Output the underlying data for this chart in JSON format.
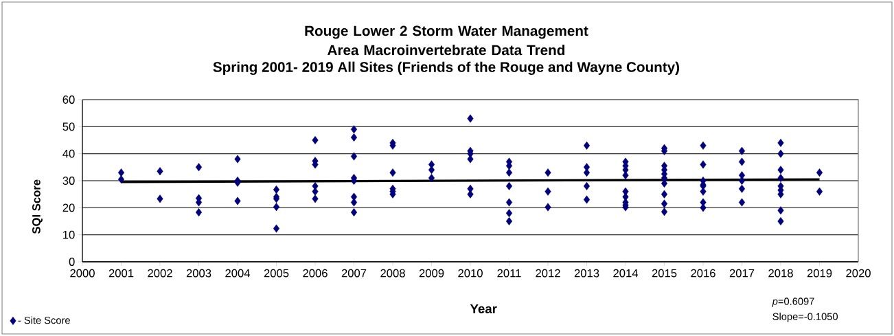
{
  "chart_data": {
    "type": "scatter",
    "title": "Rouge Lower 2 Storm Water Management Area Macroinvertebrate Data Trend",
    "subtitle": "Spring 2001- 2019 All Sites (Friends of the Rouge and Wayne County)",
    "xlabel": "Year",
    "ylabel": "SQI Score",
    "annotations": [
      "*p*=0.6097",
      "Slope=-0.1050"
    ],
    "xlim": [
      2000,
      2020
    ],
    "xticks": [
      2000,
      2001,
      2002,
      2003,
      2004,
      2005,
      2006,
      2007,
      2008,
      2009,
      2010,
      2011,
      2012,
      2013,
      2014,
      2015,
      2016,
      2017,
      2018,
      2019,
      2020
    ],
    "ylim": [
      0,
      60
    ],
    "yticks": [
      0,
      10,
      20,
      30,
      40,
      50,
      60
    ],
    "grid": "y",
    "legend": "bottom left",
    "series": [
      {
        "name": "- Site Score",
        "marker": "diamond",
        "color": "#000080",
        "x": [
          2001,
          2001,
          2002,
          2002,
          2003,
          2003,
          2003,
          2003,
          2004,
          2004,
          2004,
          2004,
          2005,
          2005,
          2005,
          2005,
          2005,
          2006,
          2006,
          2006,
          2006,
          2006,
          2006,
          2007,
          2007,
          2007,
          2007,
          2007,
          2007,
          2007,
          2007,
          2008,
          2008,
          2008,
          2008,
          2008,
          2008,
          2009,
          2009,
          2009,
          2010,
          2010,
          2010,
          2010,
          2010,
          2010,
          2011,
          2011,
          2011,
          2011,
          2011,
          2011,
          2011,
          2012,
          2012,
          2012,
          2013,
          2013,
          2013,
          2013,
          2013,
          2014,
          2014,
          2014,
          2014,
          2014,
          2014,
          2014,
          2014,
          2014,
          2015,
          2015,
          2015,
          2015,
          2015,
          2015,
          2015,
          2015,
          2015,
          2015,
          2016,
          2016,
          2016,
          2016,
          2016,
          2016,
          2016,
          2016,
          2017,
          2017,
          2017,
          2017,
          2017,
          2017,
          2018,
          2018,
          2018,
          2018,
          2018,
          2018,
          2018,
          2018,
          2018,
          2019,
          2019
        ],
        "values": [
          33,
          30.5,
          33.5,
          23.3,
          35,
          23.5,
          22,
          18.3,
          38,
          30,
          29.3,
          22.5,
          26.7,
          24,
          23.3,
          20.3,
          12.3,
          45,
          37.3,
          36,
          28,
          26,
          23.3,
          49,
          46,
          39,
          31,
          30,
          24,
          22,
          18.3,
          44,
          43,
          33,
          27,
          26,
          25,
          36,
          34,
          31,
          53,
          41,
          40,
          38,
          27,
          25,
          37,
          35.5,
          33,
          28,
          22,
          18,
          15,
          33,
          26,
          20.2,
          43,
          35,
          33,
          28,
          23,
          37,
          35.5,
          34,
          32,
          26,
          24,
          22,
          21,
          20.2,
          42,
          41,
          35.5,
          34,
          32.5,
          31,
          29,
          25,
          21.5,
          18.5,
          43,
          36,
          30,
          28.5,
          28,
          26,
          22,
          20,
          41,
          37,
          32,
          30,
          27,
          22,
          44,
          40,
          34,
          31,
          28,
          26.5,
          25,
          19,
          15,
          33,
          26
        ]
      },
      {
        "type": "line",
        "color": "#000000",
        "x": [
          2001,
          2019
        ],
        "values": [
          29.5,
          30.5
        ]
      }
    ]
  }
}
